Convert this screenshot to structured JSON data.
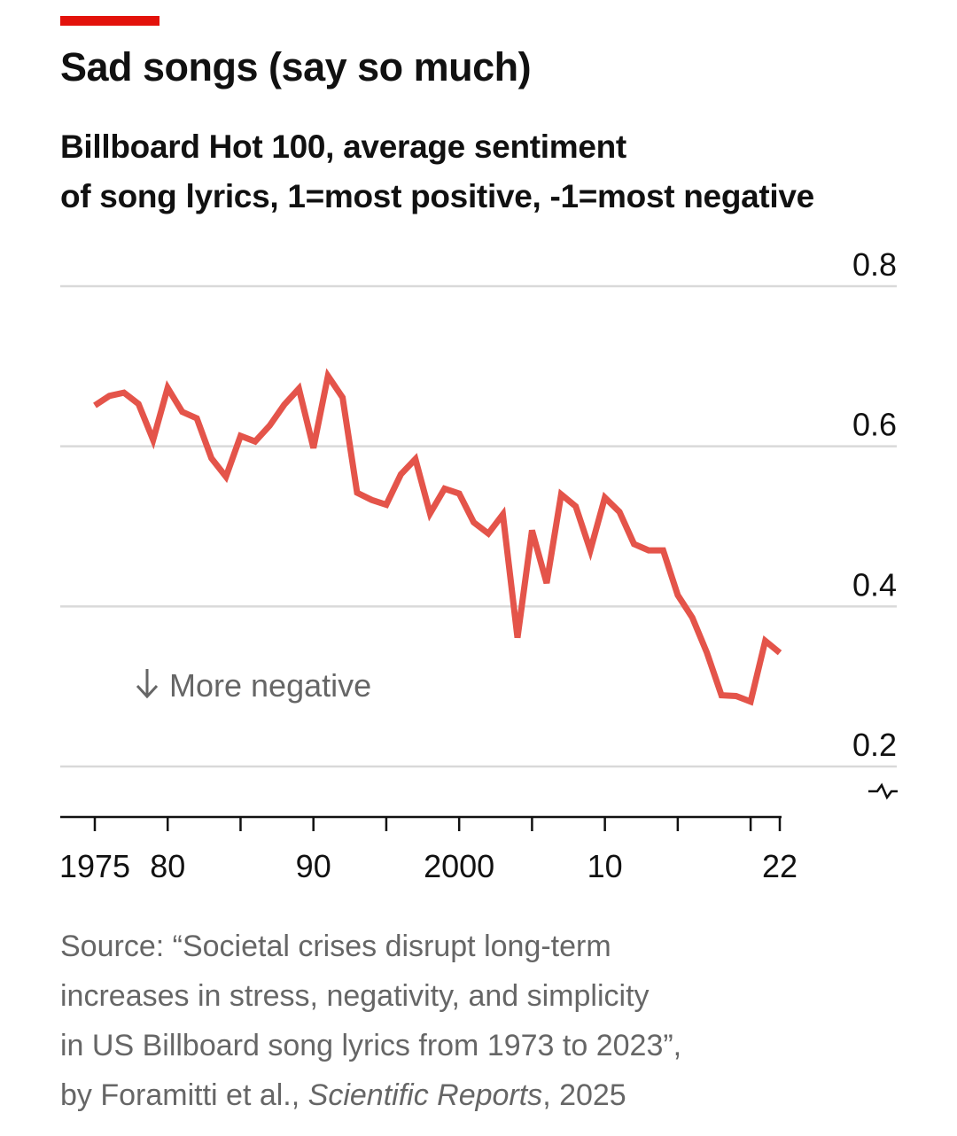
{
  "header": {
    "title": "Sad songs (say so much)",
    "subtitle_line1": "Billboard Hot 100, average sentiment",
    "subtitle_line2": "of song lyrics, 1=most positive, -1=most negative"
  },
  "colors": {
    "accent": "#e3120b",
    "line": "#e4544a",
    "grid": "#d9d9d9",
    "annotation": "#666666"
  },
  "chart_data": {
    "type": "line",
    "title": "Sad songs (say so much)",
    "xlabel": "",
    "ylabel": "",
    "ylim": [
      0.2,
      0.8
    ],
    "xlim": [
      1975,
      2022
    ],
    "y_ticks": [
      {
        "value": 0.8,
        "label": "0.8"
      },
      {
        "value": 0.6,
        "label": "0.6"
      },
      {
        "value": 0.4,
        "label": "0.4"
      },
      {
        "value": 0.2,
        "label": "0.2"
      }
    ],
    "x_ticks": [
      1975,
      1980,
      1985,
      1990,
      1995,
      2000,
      2005,
      2010,
      2015,
      2020,
      2022
    ],
    "x_tick_labels": [
      {
        "value": 1975,
        "label": "1975"
      },
      {
        "value": 1980,
        "label": "80"
      },
      {
        "value": 1990,
        "label": "90"
      },
      {
        "value": 2000,
        "label": "2000"
      },
      {
        "value": 2010,
        "label": "10"
      },
      {
        "value": 2022,
        "label": "22"
      }
    ],
    "annotation": "More negative",
    "annotation_icon": "arrow-down-icon",
    "series": [
      {
        "name": "Average sentiment",
        "x": [
          1975,
          1976,
          1977,
          1978,
          1979,
          1980,
          1981,
          1982,
          1983,
          1984,
          1985,
          1986,
          1987,
          1988,
          1989,
          1990,
          1991,
          1992,
          1993,
          1994,
          1995,
          1996,
          1997,
          1998,
          1999,
          2000,
          2001,
          2002,
          2003,
          2004,
          2005,
          2006,
          2007,
          2008,
          2009,
          2010,
          2011,
          2012,
          2013,
          2014,
          2015,
          2016,
          2017,
          2018,
          2019,
          2020,
          2021,
          2022
        ],
        "values": [
          0.651,
          0.663,
          0.667,
          0.653,
          0.608,
          0.673,
          0.643,
          0.635,
          0.585,
          0.562,
          0.613,
          0.606,
          0.626,
          0.652,
          0.672,
          0.598,
          0.688,
          0.661,
          0.542,
          0.533,
          0.527,
          0.565,
          0.584,
          0.516,
          0.547,
          0.541,
          0.505,
          0.491,
          0.515,
          0.361,
          0.495,
          0.429,
          0.54,
          0.525,
          0.47,
          0.536,
          0.518,
          0.478,
          0.47,
          0.47,
          0.414,
          0.386,
          0.342,
          0.289,
          0.288,
          0.281,
          0.357,
          0.342
        ]
      }
    ]
  },
  "source": {
    "line1": "Source: “Societal crises disrupt long-term",
    "line2": "increases in stress, negativity, and simplicity",
    "line3": "in US Billboard song lyrics from 1973 to 2023”,",
    "line4_prefix": "by Foramitti et al., ",
    "line4_journal": "Scientific Reports",
    "line4_suffix": ", 2025"
  }
}
